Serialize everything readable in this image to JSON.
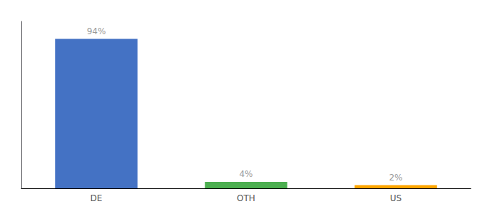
{
  "chart_data": {
    "type": "bar",
    "categories": [
      "DE",
      "OTH",
      "US"
    ],
    "values": [
      94,
      4,
      2
    ],
    "value_labels": [
      "94%",
      "4%",
      "2%"
    ],
    "colors": [
      "#4472C4",
      "#4CAF50",
      "#FFA500"
    ],
    "ylim": [
      0,
      105
    ],
    "data_labels": true,
    "tick_labels": "x",
    "grid": false
  }
}
